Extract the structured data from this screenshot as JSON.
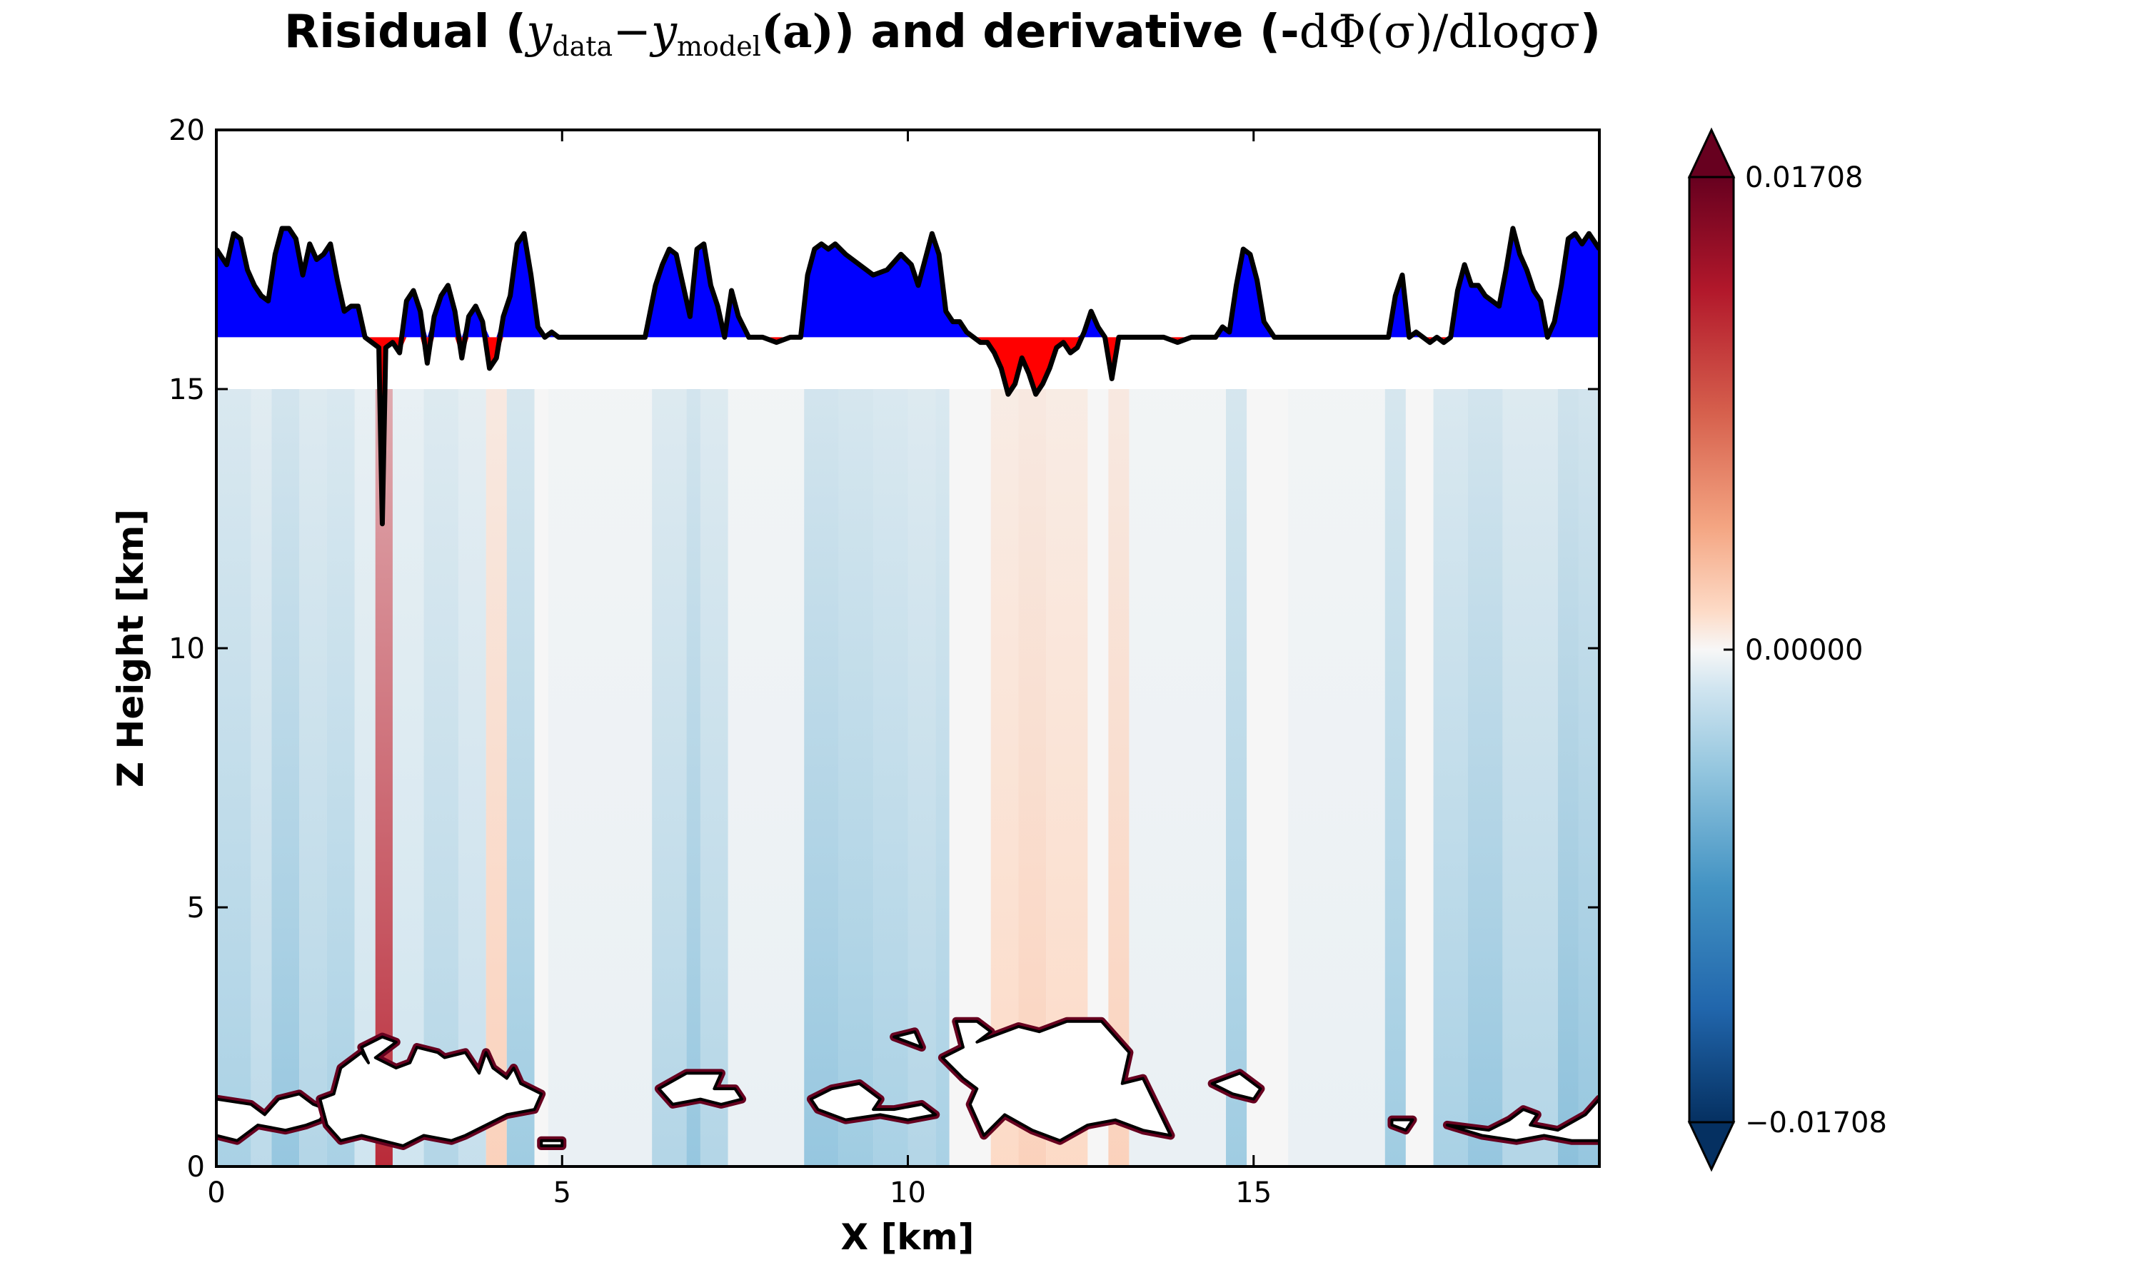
{
  "chart_data": {
    "type": "heatmap",
    "title": {
      "prefix": "Risidual (",
      "ydata": "y",
      "ydata_sub": "data",
      "minus": "−",
      "ymodel": "y",
      "ymodel_sub": "model",
      "arg": "(a)",
      "mid": ") and derivative (-",
      "deriv": "dΦ(σ)/dlogσ",
      "suffix": ")"
    },
    "xlabel": "X [km]",
    "ylabel": "Z Height [km]",
    "xlim": [
      0,
      20
    ],
    "ylim": [
      0,
      20
    ],
    "x_ticks": [
      0,
      5,
      10,
      15
    ],
    "y_ticks": [
      0,
      5,
      10,
      15,
      20
    ],
    "colorbar": {
      "min": -0.01708,
      "max": 0.01708,
      "tick_labels": [
        "0.01708",
        "0.00000",
        "−0.01708"
      ],
      "tick_values": [
        0.01708,
        0.0,
        -0.01708
      ],
      "colormap": "RdBu_r",
      "extend": "both"
    },
    "residual_baseline_km": 16.0,
    "residual_profile": {
      "x": [
        0.0,
        0.15,
        0.25,
        0.35,
        0.45,
        0.55,
        0.65,
        0.75,
        0.85,
        0.95,
        1.05,
        1.15,
        1.25,
        1.35,
        1.45,
        1.55,
        1.65,
        1.75,
        1.85,
        1.95,
        2.05,
        2.15,
        2.25,
        2.35,
        2.4,
        2.45,
        2.55,
        2.65,
        2.75,
        2.85,
        2.95,
        3.05,
        3.15,
        3.25,
        3.35,
        3.45,
        3.55,
        3.65,
        3.75,
        3.85,
        3.95,
        4.05,
        4.15,
        4.25,
        4.35,
        4.45,
        4.55,
        4.65,
        4.75,
        4.85,
        4.95,
        5.05,
        5.3,
        5.6,
        5.9,
        6.2,
        6.35,
        6.45,
        6.55,
        6.65,
        6.75,
        6.85,
        6.95,
        7.05,
        7.15,
        7.25,
        7.35,
        7.45,
        7.55,
        7.7,
        7.9,
        8.1,
        8.3,
        8.45,
        8.55,
        8.65,
        8.75,
        8.85,
        8.95,
        9.1,
        9.3,
        9.5,
        9.7,
        9.9,
        10.05,
        10.15,
        10.25,
        10.35,
        10.45,
        10.55,
        10.65,
        10.75,
        10.85,
        10.95,
        11.05,
        11.15,
        11.25,
        11.35,
        11.45,
        11.55,
        11.65,
        11.75,
        11.85,
        11.95,
        12.05,
        12.15,
        12.25,
        12.35,
        12.45,
        12.55,
        12.65,
        12.75,
        12.85,
        12.95,
        13.05,
        13.15,
        13.3,
        13.5,
        13.7,
        13.9,
        14.1,
        14.3,
        14.45,
        14.55,
        14.65,
        14.75,
        14.85,
        14.95,
        15.05,
        15.15,
        15.3,
        15.6,
        15.9,
        16.2,
        16.5,
        16.8,
        16.95,
        17.05,
        17.15,
        17.25,
        17.35,
        17.45,
        17.55,
        17.65,
        17.75,
        17.85,
        17.95,
        18.05,
        18.15,
        18.25,
        18.35,
        18.45,
        18.55,
        18.65,
        18.75,
        18.85,
        18.95,
        19.05,
        19.15,
        19.25,
        19.35,
        19.45,
        19.55,
        19.65,
        19.75,
        19.85,
        20.0
      ],
      "y": [
        17.7,
        17.4,
        18.0,
        17.9,
        17.3,
        17.0,
        16.8,
        16.7,
        17.6,
        18.1,
        18.1,
        17.9,
        17.2,
        17.8,
        17.5,
        17.6,
        17.8,
        17.1,
        16.5,
        16.6,
        16.6,
        16.0,
        15.9,
        15.8,
        12.4,
        15.8,
        15.9,
        15.7,
        16.7,
        16.9,
        16.5,
        15.5,
        16.4,
        16.8,
        17.0,
        16.5,
        15.6,
        16.4,
        16.6,
        16.3,
        15.4,
        15.6,
        16.4,
        16.8,
        17.8,
        18.0,
        17.2,
        16.2,
        16.0,
        16.1,
        16.0,
        16.0,
        16.0,
        16.0,
        16.0,
        16.0,
        17.0,
        17.4,
        17.7,
        17.6,
        17.0,
        16.4,
        17.7,
        17.8,
        17.0,
        16.6,
        16.0,
        16.9,
        16.4,
        16.0,
        16.0,
        15.9,
        16.0,
        16.0,
        17.2,
        17.7,
        17.8,
        17.7,
        17.8,
        17.6,
        17.4,
        17.2,
        17.3,
        17.6,
        17.4,
        17.0,
        17.5,
        18.0,
        17.6,
        16.5,
        16.3,
        16.3,
        16.1,
        16.0,
        15.9,
        15.9,
        15.7,
        15.4,
        14.9,
        15.1,
        15.6,
        15.3,
        14.9,
        15.1,
        15.4,
        15.8,
        15.9,
        15.7,
        15.8,
        16.1,
        16.5,
        16.2,
        16.0,
        15.2,
        16.0,
        16.0,
        16.0,
        16.0,
        16.0,
        15.9,
        16.0,
        16.0,
        16.0,
        16.2,
        16.1,
        17.0,
        17.7,
        17.6,
        17.1,
        16.3,
        16.0,
        16.0,
        16.0,
        16.0,
        16.0,
        16.0,
        16.0,
        16.8,
        17.2,
        16.0,
        16.1,
        16.0,
        15.9,
        16.0,
        15.9,
        16.0,
        16.9,
        17.4,
        17.0,
        17.0,
        16.8,
        16.7,
        16.6,
        17.3,
        18.1,
        17.6,
        17.3,
        16.9,
        16.7,
        16.0,
        16.3,
        17.0,
        17.9,
        18.0,
        17.8,
        18.0,
        17.7,
        17.6
      ]
    },
    "residual_fill_colors": {
      "positive": "#0000ff",
      "negative": "#ff0000",
      "line": "#000000"
    },
    "heatmap_columns": {
      "x_start": [
        0.0,
        0.5,
        0.8,
        1.2,
        1.6,
        2.0,
        2.3,
        2.55,
        3.0,
        3.5,
        3.9,
        4.2,
        4.8,
        6.3,
        6.8,
        7.0,
        7.4,
        8.5,
        9.0,
        9.5,
        10.0,
        10.4,
        11.2,
        11.6,
        12.0,
        12.9,
        13.2,
        14.6,
        15.5,
        16.9,
        17.6,
        18.1,
        18.6,
        19.4,
        19.7
      ],
      "x_end": [
        0.5,
        0.8,
        1.2,
        1.6,
        2.0,
        2.3,
        2.55,
        3.0,
        3.5,
        3.9,
        4.2,
        4.6,
        6.3,
        6.8,
        7.0,
        7.4,
        8.5,
        9.0,
        9.5,
        10.0,
        10.4,
        10.6,
        11.6,
        12.0,
        12.6,
        13.2,
        14.6,
        14.9,
        16.9,
        17.2,
        18.1,
        18.6,
        19.4,
        19.7,
        20.0
      ],
      "value": [
        -0.0035,
        -0.0025,
        -0.0045,
        -0.003,
        -0.0035,
        -0.0015,
        0.0125,
        -0.0015,
        -0.003,
        -0.002,
        0.002,
        -0.004,
        -0.0005,
        -0.003,
        -0.0045,
        -0.003,
        -0.0005,
        -0.0045,
        -0.004,
        -0.0035,
        -0.003,
        -0.0035,
        0.0015,
        0.002,
        0.0015,
        0.002,
        -0.0005,
        -0.004,
        -0.0005,
        -0.004,
        -0.0035,
        -0.0045,
        -0.003,
        -0.005,
        -0.0045
      ]
    },
    "heatmap_top_km": 15.0,
    "cloud_regions": [
      {
        "x": [
          0.0,
          0.5,
          0.7,
          0.9,
          1.2,
          1.4,
          1.6,
          1.5,
          1.3,
          1.0,
          0.6,
          0.3,
          0.0
        ],
        "y": [
          1.3,
          1.2,
          1.0,
          1.3,
          1.4,
          1.2,
          1.1,
          0.9,
          0.8,
          0.7,
          0.8,
          0.5,
          0.6
        ]
      },
      {
        "x": [
          1.5,
          1.7,
          1.8,
          2.1,
          2.2,
          2.1,
          2.4,
          2.6,
          2.3,
          2.6,
          2.8,
          2.9,
          3.2,
          3.3,
          3.6,
          3.7,
          3.8,
          3.9,
          4.0,
          4.2,
          4.3,
          4.4,
          4.7,
          4.6,
          4.2,
          3.9,
          3.6,
          3.4,
          3.0,
          2.7,
          2.4,
          2.1,
          1.8,
          1.6,
          1.5
        ],
        "y": [
          1.3,
          1.4,
          1.9,
          2.2,
          2.0,
          2.3,
          2.5,
          2.4,
          2.1,
          1.9,
          2.0,
          2.3,
          2.2,
          2.1,
          2.2,
          2.0,
          1.8,
          2.2,
          1.9,
          1.7,
          1.9,
          1.6,
          1.4,
          1.1,
          1.0,
          0.8,
          0.6,
          0.5,
          0.6,
          0.4,
          0.5,
          0.6,
          0.5,
          0.8,
          1.3
        ]
      },
      {
        "x": [
          4.7,
          5.0,
          5.0,
          4.7,
          4.7
        ],
        "y": [
          0.5,
          0.5,
          0.4,
          0.4,
          0.5
        ]
      },
      {
        "x": [
          6.4,
          6.8,
          7.3,
          7.2,
          7.5,
          7.6,
          7.3,
          7.0,
          6.6,
          6.4
        ],
        "y": [
          1.5,
          1.8,
          1.8,
          1.5,
          1.5,
          1.3,
          1.2,
          1.3,
          1.2,
          1.5
        ]
      },
      {
        "x": [
          8.6,
          8.9,
          9.3,
          9.6,
          9.5,
          9.8,
          10.2,
          10.4,
          10.0,
          9.6,
          9.1,
          8.7,
          8.6
        ],
        "y": [
          1.3,
          1.5,
          1.6,
          1.3,
          1.1,
          1.1,
          1.2,
          1.0,
          0.9,
          1.0,
          0.9,
          1.1,
          1.3
        ]
      },
      {
        "x": [
          9.8,
          10.1,
          10.2,
          10.0,
          9.8
        ],
        "y": [
          2.5,
          2.6,
          2.3,
          2.4,
          2.5
        ]
      },
      {
        "x": [
          10.5,
          10.8,
          10.7,
          11.0,
          11.2,
          11.0,
          11.6,
          11.9,
          12.3,
          12.8,
          13.0,
          13.2,
          13.1,
          13.4,
          13.8,
          13.4,
          13.0,
          12.6,
          12.2,
          11.8,
          11.4,
          11.1,
          10.9,
          11.0,
          10.8,
          10.5
        ],
        "y": [
          2.1,
          2.3,
          2.8,
          2.8,
          2.6,
          2.4,
          2.7,
          2.6,
          2.8,
          2.8,
          2.5,
          2.2,
          1.6,
          1.7,
          0.6,
          0.7,
          0.9,
          0.8,
          0.5,
          0.7,
          1.0,
          0.6,
          1.2,
          1.5,
          1.7,
          2.1
        ]
      },
      {
        "x": [
          14.4,
          14.8,
          15.1,
          15.0,
          14.7,
          14.4
        ],
        "y": [
          1.6,
          1.8,
          1.5,
          1.3,
          1.4,
          1.6
        ]
      },
      {
        "x": [
          17.0,
          17.3,
          17.2,
          17.0
        ],
        "y": [
          0.9,
          0.9,
          0.7,
          0.8
        ]
      },
      {
        "x": [
          17.8,
          18.4,
          18.7,
          18.9,
          19.1,
          19.0,
          19.4,
          19.8,
          20.0,
          20.0,
          19.6,
          19.2,
          18.8,
          18.3,
          17.8
        ],
        "y": [
          0.8,
          0.7,
          0.9,
          1.1,
          1.0,
          0.8,
          0.7,
          1.0,
          1.3,
          0.5,
          0.5,
          0.6,
          0.5,
          0.6,
          0.8
        ]
      }
    ],
    "cloud_edge_color": "#67001f"
  }
}
